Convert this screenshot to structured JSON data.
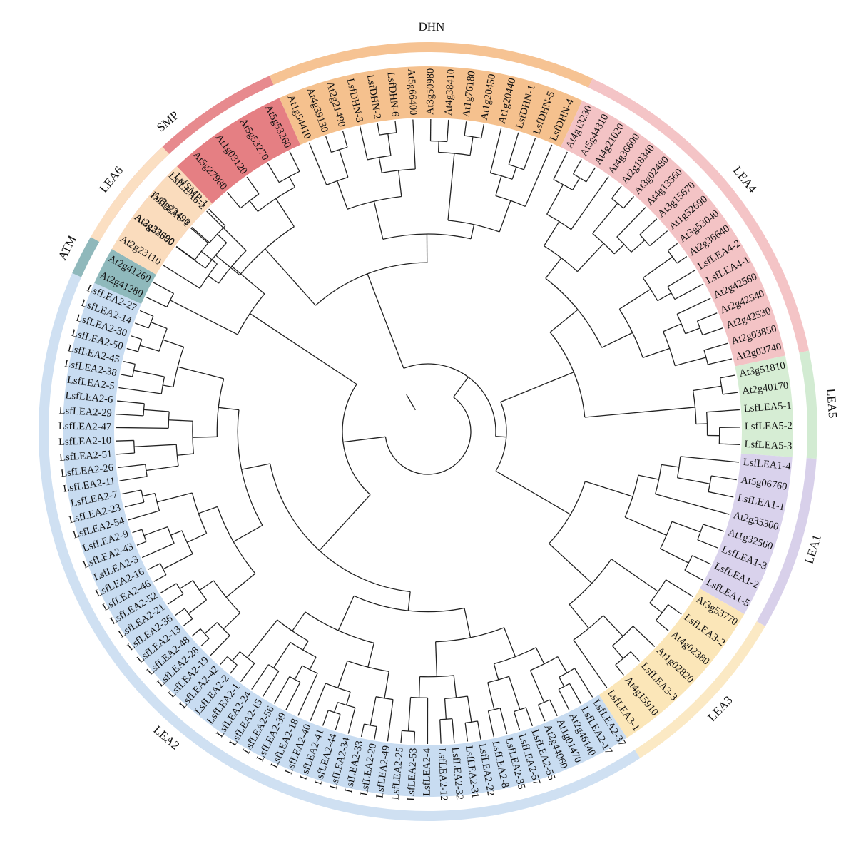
{
  "groups": [
    {
      "name": "SMP",
      "color": "#e78a8e",
      "leafColor": "#e57f83",
      "start": -56,
      "end": -24,
      "leaves": [
        "At3g22500",
        "At3g22490",
        "LsfSMP-1",
        "At5g27980",
        "At1g03120",
        "At5g53270",
        "At5g53260"
      ]
    },
    {
      "name": "DHN",
      "color": "#f6c393",
      "leafColor": "#f5c18e",
      "start": -24,
      "end": 25,
      "leaves": [
        "At1g54410",
        "At4g39130",
        "At2g21490",
        "LsfDHN-3",
        "LsfDHN-2",
        "LsfDHN-6",
        "At5g66400",
        "At3g50980",
        "At4g38410",
        "At1g76180",
        "At1g20450",
        "At1g20440",
        "LsfDHN-1",
        "LsfDHN-5",
        "LsfDHN-4"
      ]
    },
    {
      "name": "LEA4",
      "color": "#f4c4c6",
      "leafColor": "#f3c3c5",
      "start": 25,
      "end": 78,
      "leaves": [
        "At4g13230",
        "At5g44310",
        "At4g21020",
        "At4g36600",
        "At2g18340",
        "At3g02480",
        "At4g13560",
        "At3g15670",
        "At1g52690",
        "At3g53040",
        "At2g36640",
        "LsfLEA4-2",
        "LsfLEA4-1",
        "At2g42560",
        "At2g42540",
        "At2g42530",
        "At2g03850",
        "At2g03740"
      ]
    },
    {
      "name": "LEA5",
      "color": "#d2ebd2",
      "leafColor": "#d6edd4",
      "start": 78,
      "end": 94,
      "leaves": [
        "At3g51810",
        "At2g40170",
        "LsfLEA5-1",
        "LsfLEA5-2",
        "LsfLEA5-3"
      ]
    },
    {
      "name": "LEA1",
      "color": "#d8d0ea",
      "leafColor": "#d9d2ec",
      "start": 94,
      "end": 120,
      "leaves": [
        "LsfLEA1-4",
        "At5g06760",
        "LsfLEA1-1",
        "At2g35300",
        "At1g32560",
        "LsfLEA1-3",
        "LsfLEA1-2",
        "LsfLEA1-5"
      ]
    },
    {
      "name": "LEA3",
      "color": "#fbe9c4",
      "leafColor": "#fbe6b8",
      "start": 120,
      "end": 147,
      "leaves": [
        "At3g53770",
        "LsfLEA3-2",
        "At4g02380",
        "At1g02820",
        "LsfLEA3-3",
        "At4g15910",
        "LsfLEA3-1"
      ]
    },
    {
      "name": "LEA2",
      "color": "#cfe0f2",
      "leafColor": "#c8dcf1",
      "start": 147,
      "end": 294,
      "leaves": [
        "LsfLEA2-37",
        "LsfLEA2-17",
        "At2g46140",
        "At1g01470",
        "At2g44060",
        "LsfLEA2-55",
        "LsfLEA2-57",
        "LsfLEA2-35",
        "LsfLEA2-8",
        "LsfLEA2-22",
        "LsfLEA2-31",
        "LsfLEA2-32",
        "LsfLEA2-12",
        "LsfLEA2-4",
        "LsfLEA2-53",
        "LsfLEA2-25",
        "LsfLEA2-49",
        "LsfLEA2-20",
        "LsfLEA2-33",
        "LsfLEA2-34",
        "LsfLEA2-44",
        "LsfLEA2-41",
        "LsfLEA2-40",
        "LsfLEA2-18",
        "LsfLEA2-39",
        "LsfLEA2-56",
        "LsfLEA2-15",
        "LsfLEA2-24",
        "LsfLEA2-1",
        "LsfLEA2-2",
        "LsfLEA2-42",
        "LsfLEA2-19",
        "LsfLEA2-28",
        "LsfLEA2-48",
        "LsfLEA2-13",
        "LsfLEA2-36",
        "LsfLEA2-21",
        "LsfLEA2-52",
        "LsfLEA2-46",
        "LsfLEA2-16",
        "LsfLEA2-3",
        "LsfLEA2-43",
        "LsfLEA2-9",
        "LsfLEA2-54",
        "LsfLEA2-23",
        "LsfLEA2-7",
        "LsfLEA2-11",
        "LsfLEA2-26",
        "LsfLEA2-51",
        "LsfLEA2-10",
        "LsfLEA2-47",
        "LsfLEA2-29",
        "LsfLEA2-6",
        "LsfLEA2-5",
        "LsfLEA2-38",
        "LsfLEA2-45",
        "LsfLEA2-50",
        "LsfLEA2-30",
        "LsfLEA2-14",
        "LsfLEA2-27"
      ]
    },
    {
      "name": "ATM",
      "color": "#8fb8bb",
      "leafColor": "#8fb9bc",
      "start": 294,
      "end": 300,
      "leaves": [
        "At2g41280",
        "At2g41260"
      ]
    },
    {
      "name": "LEA6",
      "color": "#fbdfc2",
      "leafColor": "#fadcbd",
      "start": 300,
      "end": 317,
      "leaves": [
        "At2g23110",
        "At2g33690",
        "LsfLEA6-1",
        "LsfLEA6-2"
      ]
    }
  ]
}
